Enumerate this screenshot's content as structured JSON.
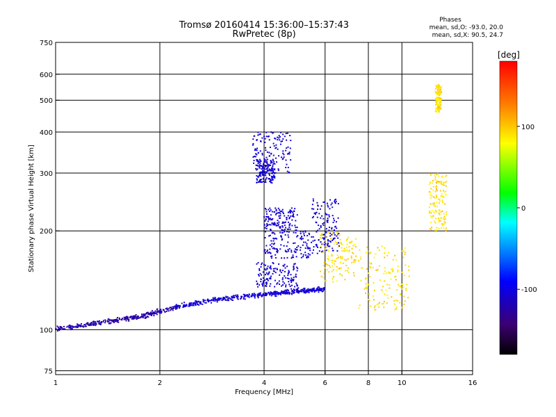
{
  "chart_data": {
    "type": "scatter",
    "title": "Tromsø 20160414 15:36:00–15:37:43",
    "subtitle": "RwPretec (8p)",
    "xlabel": "Frequency [MHz]",
    "ylabel": "Stationary phase Virtual Height [km]",
    "xscale": "log",
    "yscale": "log",
    "xlim": [
      1,
      16
    ],
    "ylim": [
      73,
      750
    ],
    "xticks": [
      1,
      2,
      4,
      6,
      8,
      10,
      16
    ],
    "yticks": [
      75,
      100,
      200,
      300,
      400,
      500,
      600,
      750
    ],
    "grid": true,
    "colorbar": {
      "label": "[deg]",
      "min": -180,
      "max": 180,
      "ticks": [
        100,
        0,
        -100
      ],
      "colormap": [
        "#000000",
        "#3c0070",
        "#0000ff",
        "#00ffff",
        "#00ff00",
        "#ffff00",
        "#ff8000",
        "#ff0000"
      ]
    },
    "annotation": {
      "title": "Phases",
      "line1": "mean, sd,O: -93.0, 20.0",
      "line2": "mean, sd,X:  90.5, 24.7"
    },
    "series": [
      {
        "mode": "O",
        "phase_mean": -93.0,
        "phase_sd": 20.0,
        "trace": {
          "x": [
            1.0,
            1.2,
            1.4,
            1.6,
            1.8,
            2.0,
            2.3,
            2.6,
            3.0,
            3.5,
            4.0,
            4.5,
            5.0,
            5.5,
            6.0
          ],
          "y": [
            101,
            103,
            106,
            108,
            110,
            114,
            118,
            121,
            124,
            126,
            128,
            130,
            131,
            132,
            133
          ]
        },
        "clusters": [
          {
            "x": [
              3.8,
              5.0
            ],
            "y": [
              135,
              160
            ]
          },
          {
            "x": [
              4.0,
              5.5
            ],
            "y": [
              165,
              200
            ]
          },
          {
            "x": [
              4.0,
              5.0
            ],
            "y": [
              200,
              235
            ]
          },
          {
            "x": [
              5.5,
              6.6
            ],
            "y": [
              170,
              250
            ]
          },
          {
            "x": [
              3.8,
              4.3
            ],
            "y": [
              280,
              330
            ]
          },
          {
            "x": [
              3.7,
              4.8
            ],
            "y": [
              300,
              400
            ]
          }
        ]
      },
      {
        "mode": "X",
        "phase_mean": 90.5,
        "phase_sd": 24.7,
        "clusters": [
          {
            "x": [
              5.8,
              7.4
            ],
            "y": [
              140,
              200
            ]
          },
          {
            "x": [
              7.5,
              10.5
            ],
            "y": [
              115,
              180
            ]
          },
          {
            "x": [
              12.0,
              13.5
            ],
            "y": [
              200,
              300
            ]
          },
          {
            "x": [
              12.5,
              13.0
            ],
            "y": [
              460,
              560
            ]
          }
        ]
      }
    ]
  }
}
